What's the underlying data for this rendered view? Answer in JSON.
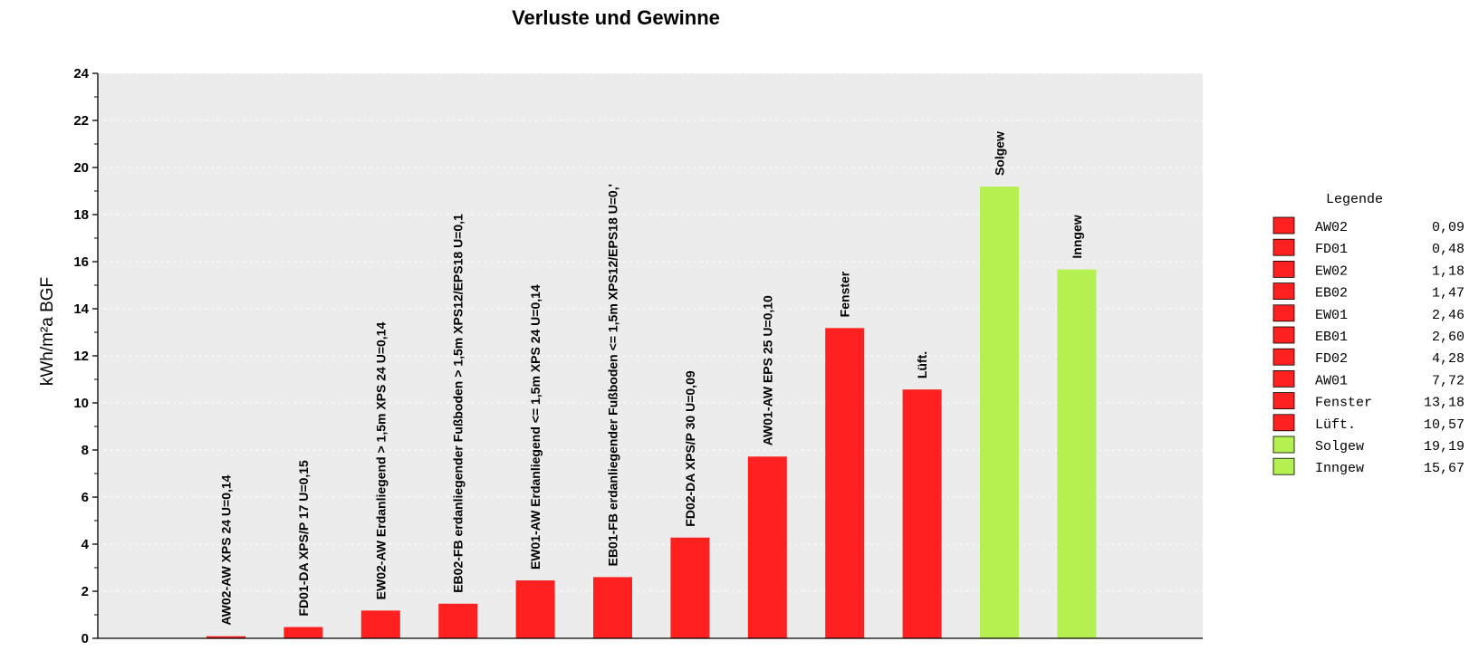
{
  "chart_data": {
    "type": "bar",
    "title": "Verluste und Gewinne",
    "xlabel": "",
    "ylabel": "kWh/m²a BGF",
    "ylim": [
      0,
      24
    ],
    "yticks": [
      0,
      2,
      4,
      6,
      8,
      10,
      12,
      14,
      16,
      18,
      20,
      22,
      24
    ],
    "grid": true,
    "legend_position": "right",
    "legend_title": "Legende",
    "colors": {
      "loss": "#ff2020",
      "gain": "#b4f050",
      "plot_bg": "#ececec",
      "grid": "#ffffff"
    },
    "bars": [
      {
        "label": "AW02-AW XPS 24 U=0,14",
        "legend": "AW02",
        "value": 0.09,
        "value_text": "0,09",
        "kind": "loss"
      },
      {
        "label": "FD01-DA XPS/P 17 U=0,15",
        "legend": "FD01",
        "value": 0.48,
        "value_text": "0,48",
        "kind": "loss"
      },
      {
        "label": "EW02-AW Erdanliegend > 1,5m XPS 24 U=0,14",
        "legend": "EW02",
        "value": 1.18,
        "value_text": "1,18",
        "kind": "loss"
      },
      {
        "label": "EB02-FB  erdanliegender Fußboden > 1,5m XPS12/EPS18 U=0,1",
        "legend": "EB02",
        "value": 1.47,
        "value_text": "1,47",
        "kind": "loss"
      },
      {
        "label": "EW01-AW Erdanliegend <= 1,5m XPS 24 U=0,14",
        "legend": "EW01",
        "value": 2.46,
        "value_text": "2,46",
        "kind": "loss"
      },
      {
        "label": "EB01-FB  erdanliegender Fußboden <= 1,5m XPS12/EPS18 U=0,'",
        "legend": "EB01",
        "value": 2.6,
        "value_text": "2,60",
        "kind": "loss"
      },
      {
        "label": "FD02-DA XPS/P 30 U=0,09",
        "legend": "FD02",
        "value": 4.28,
        "value_text": "4,28",
        "kind": "loss"
      },
      {
        "label": "AW01-AW EPS 25 U=0,10",
        "legend": "AW01",
        "value": 7.72,
        "value_text": "7,72",
        "kind": "loss"
      },
      {
        "label": "Fenster",
        "legend": "Fenster",
        "value": 13.18,
        "value_text": "13,18",
        "kind": "loss"
      },
      {
        "label": "Lüft.",
        "legend": "Lüft.",
        "value": 10.57,
        "value_text": "10,57",
        "kind": "loss"
      },
      {
        "label": "Solgew",
        "legend": "Solgew",
        "value": 19.19,
        "value_text": "19,19",
        "kind": "gain"
      },
      {
        "label": "Inngew",
        "legend": "Inngew",
        "value": 15.67,
        "value_text": "15,67",
        "kind": "gain"
      }
    ]
  }
}
